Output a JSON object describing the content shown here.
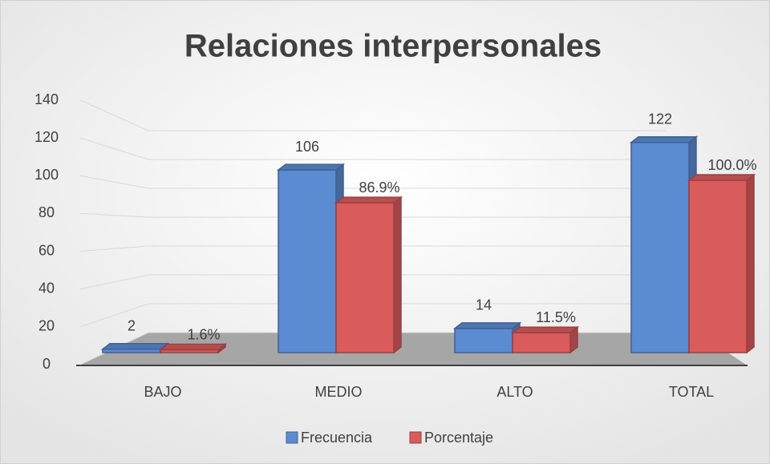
{
  "chart_data": {
    "type": "bar3d",
    "title": "Relaciones interpersonales",
    "categories": [
      "BAJO",
      "MEDIO",
      "ALTO",
      "TOTAL"
    ],
    "series": [
      {
        "name": "Frecuencia",
        "color": "#5b8bd0",
        "values": [
          2,
          106,
          14,
          122
        ]
      },
      {
        "name": "Porcentaje",
        "color": "#d95b5c",
        "values": [
          1.6,
          86.9,
          11.5,
          100.0
        ],
        "value_labels": [
          "1.6%",
          "86.9%",
          "11.5%",
          "100.0%"
        ]
      }
    ],
    "ylim": [
      0,
      140
    ],
    "yticks": [
      0,
      20,
      40,
      60,
      80,
      100,
      120,
      140
    ],
    "grid": true,
    "legend": "bottom"
  }
}
